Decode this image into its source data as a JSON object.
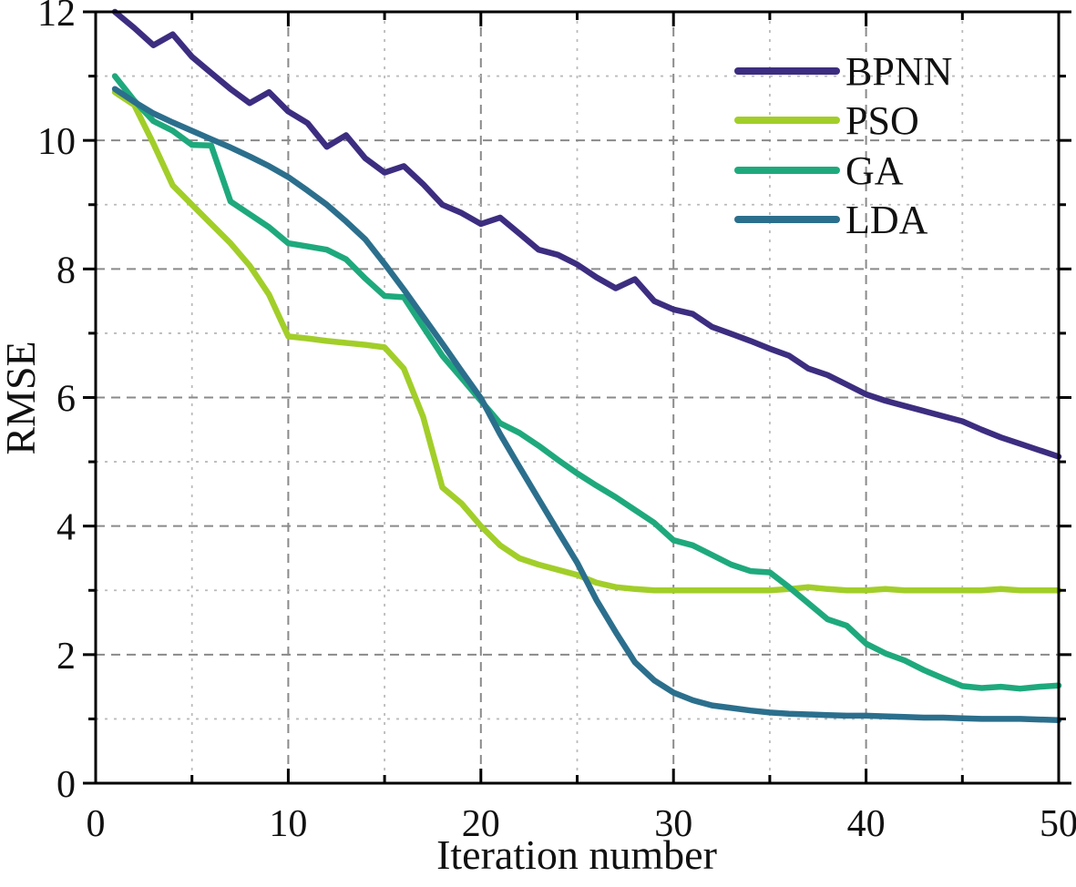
{
  "figure": {
    "kind": "scientific line plot",
    "background": "#ffffff"
  },
  "chart_data": {
    "type": "line",
    "title": "",
    "xlabel": "Iteration number",
    "ylabel": "RMSE",
    "xlim": [
      0,
      50
    ],
    "ylim": [
      0,
      12
    ],
    "x_major_ticks": [
      0,
      10,
      20,
      30,
      40,
      50
    ],
    "x_minor_ticks": [
      5,
      15,
      25,
      35,
      45
    ],
    "y_major_ticks": [
      0,
      2,
      4,
      6,
      8,
      10,
      12
    ],
    "y_minor_ticks": [
      1,
      3,
      5,
      7,
      9,
      11
    ],
    "grid": {
      "vertical_at": [
        5,
        10,
        15,
        20,
        25,
        30,
        35,
        40,
        45
      ],
      "horizontal_at": [
        1,
        2,
        3,
        4,
        5,
        6,
        7,
        8,
        9,
        10,
        11
      ],
      "style": "dashed"
    },
    "legend_position": "top-right-inside",
    "x": [
      1,
      2,
      3,
      4,
      5,
      6,
      7,
      8,
      9,
      10,
      11,
      12,
      13,
      14,
      15,
      16,
      17,
      18,
      19,
      20,
      21,
      22,
      23,
      24,
      25,
      26,
      27,
      28,
      29,
      30,
      31,
      32,
      33,
      34,
      35,
      36,
      37,
      38,
      39,
      40,
      41,
      42,
      43,
      44,
      45,
      46,
      47,
      48,
      49,
      50
    ],
    "series": [
      {
        "name": "BPNN",
        "color": "#3d2d80",
        "values": [
          12.0,
          11.75,
          11.48,
          11.65,
          11.3,
          11.05,
          10.8,
          10.58,
          10.75,
          10.45,
          10.27,
          9.9,
          10.08,
          9.72,
          9.5,
          9.6,
          9.32,
          9.0,
          8.87,
          8.7,
          8.8,
          8.55,
          8.3,
          8.22,
          8.07,
          7.87,
          7.7,
          7.84,
          7.5,
          7.37,
          7.3,
          7.1,
          6.99,
          6.88,
          6.76,
          6.65,
          6.45,
          6.35,
          6.2,
          6.05,
          5.95,
          5.87,
          5.79,
          5.71,
          5.63,
          5.5,
          5.38,
          5.28,
          5.18,
          5.08
        ]
      },
      {
        "name": "PSO",
        "color": "#a2ce29",
        "values": [
          10.75,
          10.55,
          9.95,
          9.3,
          9.0,
          8.7,
          8.4,
          8.05,
          7.6,
          6.95,
          6.92,
          6.88,
          6.85,
          6.82,
          6.78,
          6.45,
          5.7,
          4.6,
          4.35,
          4.0,
          3.7,
          3.5,
          3.4,
          3.32,
          3.24,
          3.12,
          3.05,
          3.02,
          3.0,
          3.0,
          3.0,
          3.0,
          3.0,
          3.0,
          3.0,
          3.02,
          3.05,
          3.02,
          3.0,
          3.0,
          3.02,
          3.0,
          3.0,
          3.0,
          3.0,
          3.0,
          3.02,
          3.0,
          3.0,
          3.0
        ]
      },
      {
        "name": "GA",
        "color": "#1ea97c",
        "values": [
          11.0,
          10.62,
          10.3,
          10.15,
          9.93,
          9.92,
          9.05,
          8.85,
          8.65,
          8.4,
          8.35,
          8.3,
          8.15,
          7.85,
          7.58,
          7.56,
          7.1,
          6.65,
          6.3,
          5.95,
          5.6,
          5.45,
          5.25,
          5.03,
          4.82,
          4.63,
          4.45,
          4.25,
          4.05,
          3.78,
          3.7,
          3.55,
          3.4,
          3.3,
          3.28,
          3.05,
          2.8,
          2.55,
          2.45,
          2.17,
          2.02,
          1.91,
          1.76,
          1.63,
          1.51,
          1.48,
          1.5,
          1.47,
          1.5,
          1.52
        ]
      },
      {
        "name": "LDA",
        "color": "#2b6f8d",
        "values": [
          10.8,
          10.6,
          10.42,
          10.28,
          10.15,
          10.02,
          9.89,
          9.75,
          9.6,
          9.43,
          9.22,
          9.0,
          8.74,
          8.46,
          8.08,
          7.68,
          7.26,
          6.84,
          6.41,
          5.99,
          5.43,
          4.92,
          4.42,
          3.92,
          3.43,
          2.85,
          2.35,
          1.88,
          1.6,
          1.41,
          1.29,
          1.21,
          1.17,
          1.13,
          1.1,
          1.08,
          1.07,
          1.06,
          1.05,
          1.05,
          1.04,
          1.03,
          1.02,
          1.02,
          1.01,
          1.0,
          1.0,
          1.0,
          0.99,
          0.98
        ]
      }
    ],
    "style": {
      "line_width": 6.5,
      "axis_color": "#000000",
      "major_grid_color": "#8a8a8a",
      "minor_grid_color": "#bbbbbb",
      "tick_label_color": "#111111"
    }
  }
}
